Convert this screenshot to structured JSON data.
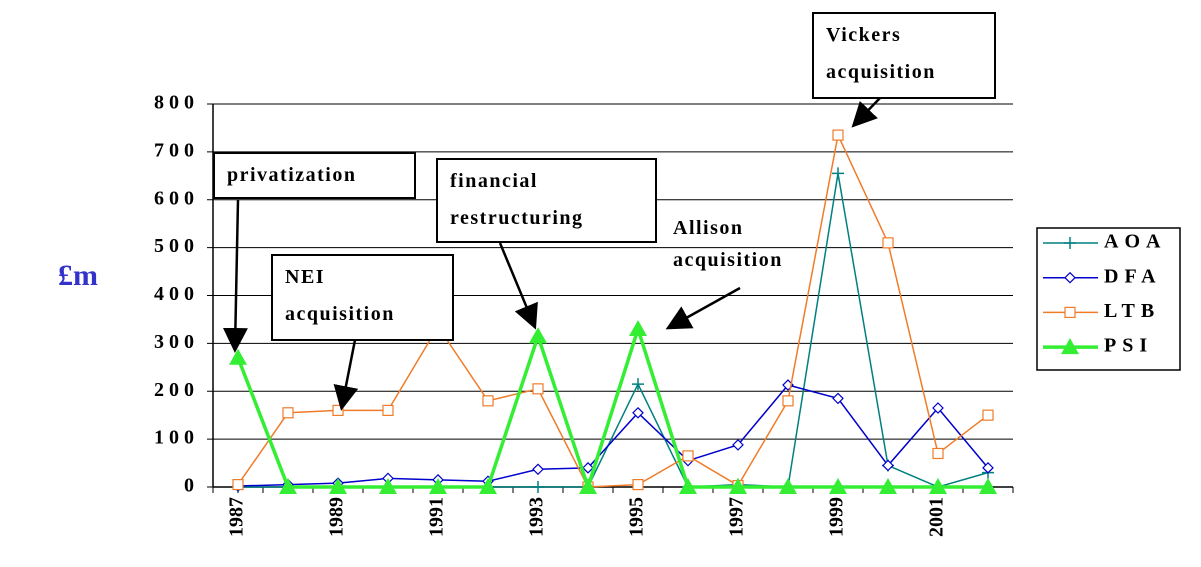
{
  "chart_data": {
    "type": "line",
    "y_label": "£m",
    "categories": [
      "1987",
      null,
      "1989",
      null,
      "1991",
      null,
      "1993",
      null,
      "1995",
      null,
      "1997",
      null,
      "1999",
      null,
      "2001",
      null
    ],
    "ylim": [
      0,
      800
    ],
    "yticks": [
      0,
      100,
      200,
      300,
      400,
      500,
      600,
      700,
      800
    ],
    "grid": true,
    "legend": "right",
    "series": [
      {
        "name": "AOA",
        "color": "#008080",
        "values": [
          0,
          0,
          0,
          0,
          0,
          0,
          0,
          0,
          215,
          0,
          5,
          0,
          655,
          45,
          0,
          30
        ]
      },
      {
        "name": "DFA",
        "color": "#0000cc",
        "values": [
          2,
          5,
          8,
          18,
          15,
          12,
          37,
          40,
          155,
          55,
          88,
          213,
          185,
          45,
          165,
          40
        ]
      },
      {
        "name": "LTB",
        "color": "#f07c2a",
        "values": [
          5,
          155,
          160,
          160,
          335,
          180,
          205,
          0,
          5,
          65,
          3,
          180,
          735,
          510,
          70,
          150
        ]
      },
      {
        "name": "PSI",
        "color": "#33ee33",
        "values": [
          270,
          0,
          0,
          0,
          0,
          0,
          315,
          0,
          330,
          0,
          0,
          0,
          0,
          0,
          0,
          0
        ]
      }
    ],
    "annotations": [
      "Vickers acquisition",
      "privatization",
      "financial restructuring",
      "NEI acquisition",
      "Allison acquisition"
    ]
  }
}
